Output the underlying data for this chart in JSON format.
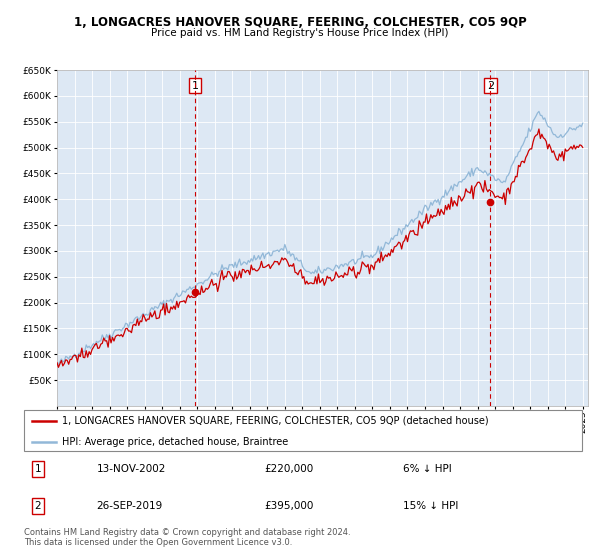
{
  "title": "1, LONGACRES HANOVER SQUARE, FEERING, COLCHESTER, CO5 9QP",
  "subtitle": "Price paid vs. HM Land Registry's House Price Index (HPI)",
  "ylim": [
    0,
    650000
  ],
  "yticks": [
    50000,
    100000,
    150000,
    200000,
    250000,
    300000,
    350000,
    400000,
    450000,
    500000,
    550000,
    600000,
    650000
  ],
  "x_start_year": 1995,
  "x_end_year": 2025,
  "bg_color": "#dde8f4",
  "grid_color": "#ffffff",
  "sale1_date_label": "13-NOV-2002",
  "sale1_price": 220000,
  "sale1_pct": "6% ↓ HPI",
  "sale1_year": 2002.87,
  "sale2_date_label": "26-SEP-2019",
  "sale2_price": 395000,
  "sale2_pct": "15% ↓ HPI",
  "sale2_year": 2019.73,
  "legend_line1": "1, LONGACRES HANOVER SQUARE, FEERING, COLCHESTER, CO5 9QP (detached house)",
  "legend_line2": "HPI: Average price, detached house, Braintree",
  "footnote": "Contains HM Land Registry data © Crown copyright and database right 2024.\nThis data is licensed under the Open Government Licence v3.0.",
  "hpi_color": "#92b8d8",
  "price_color": "#cc0000",
  "marker_box_color": "#cc0000",
  "title_fontsize": 8.5,
  "subtitle_fontsize": 7.5,
  "tick_fontsize": 6.5,
  "legend_fontsize": 7.0,
  "table_fontsize": 7.5,
  "footnote_fontsize": 6.0
}
